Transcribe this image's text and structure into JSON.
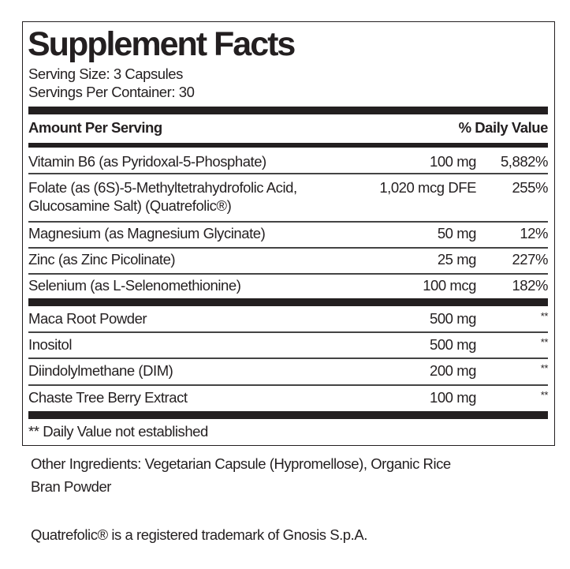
{
  "title": "Supplement Facts",
  "serving_size": "Serving Size: 3 Capsules",
  "servings_per_container": "Servings Per Container: 30",
  "header": {
    "amount": "Amount Per Serving",
    "dv": "% Daily Value"
  },
  "rows": [
    {
      "name": "Vitamin B6 (as Pyridoxal-5-Phosphate)",
      "amount": "100 mg",
      "dv": "5,882%"
    },
    {
      "name": "Folate (as (6S)-5-Methyltetrahydrofolic Acid,",
      "name2": "Glucosamine Salt) (Quatrefolic®)",
      "amount": "1,020 mcg DFE",
      "dv": "255%"
    },
    {
      "name": "Magnesium (as Magnesium Glycinate)",
      "amount": "50 mg",
      "dv": "12%"
    },
    {
      "name": "Zinc (as Zinc Picolinate)",
      "amount": "25 mg",
      "dv": "227%"
    },
    {
      "name": "Selenium (as L-Selenomethionine)",
      "amount": "100 mcg",
      "dv": "182%"
    },
    {
      "name": "Maca Root Powder",
      "amount": "500 mg",
      "dv": "**"
    },
    {
      "name": "Inositol",
      "amount": "500 mg",
      "dv": "**"
    },
    {
      "name": "Diindolylmethane (DIM)",
      "amount": "200 mg",
      "dv": "**"
    },
    {
      "name": "Chaste Tree Berry Extract",
      "amount": "100 mg",
      "dv": "**"
    }
  ],
  "footnote": "** Daily Value not established",
  "other_ingredients": {
    "line1": "Other Ingredients: Vegetarian Capsule (Hypromellose), Organic Rice",
    "line2": "Bran Powder"
  },
  "trademark": "Quatrefolic® is a registered trademark of Gnosis S.p.A."
}
